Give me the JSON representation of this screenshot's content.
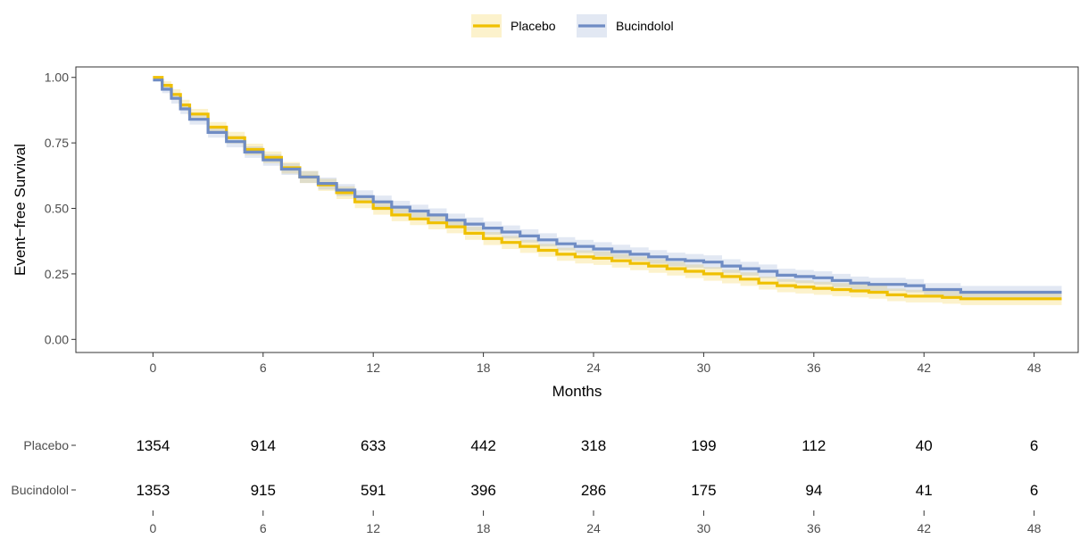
{
  "chart_data": {
    "type": "line",
    "title": "",
    "xlabel": "Months",
    "ylabel": "Event−free Survival",
    "xlim": [
      -4.2,
      50.4
    ],
    "ylim": [
      -0.05,
      1.04
    ],
    "xticks": [
      "0",
      "6",
      "12",
      "18",
      "24",
      "30",
      "36",
      "42",
      "48"
    ],
    "yticks": [
      "0.00",
      "0.25",
      "0.50",
      "0.75",
      "1.00"
    ],
    "legend_position": "top",
    "grid": false,
    "series": [
      {
        "name": "Placebo",
        "color": "#EFC000",
        "x": [
          0,
          0.5,
          1,
          1.5,
          2,
          3,
          4,
          5,
          6,
          7,
          8,
          9,
          10,
          11,
          12,
          13,
          14,
          15,
          16,
          17,
          18,
          19,
          20,
          21,
          22,
          23,
          24,
          25,
          26,
          27,
          28,
          29,
          30,
          31,
          32,
          33,
          34,
          35,
          36,
          37,
          38,
          39,
          40,
          41,
          42,
          43,
          44,
          45,
          46,
          47,
          48,
          49,
          49.5
        ],
        "y": [
          1.0,
          0.97,
          0.935,
          0.895,
          0.86,
          0.81,
          0.77,
          0.725,
          0.695,
          0.655,
          0.62,
          0.59,
          0.56,
          0.525,
          0.5,
          0.475,
          0.46,
          0.445,
          0.43,
          0.405,
          0.385,
          0.37,
          0.355,
          0.34,
          0.325,
          0.315,
          0.31,
          0.3,
          0.29,
          0.28,
          0.27,
          0.26,
          0.25,
          0.24,
          0.23,
          0.215,
          0.205,
          0.2,
          0.195,
          0.19,
          0.185,
          0.18,
          0.17,
          0.165,
          0.165,
          0.16,
          0.155,
          0.155,
          0.155,
          0.155,
          0.155,
          0.155,
          0.155
        ],
        "lower": [
          1.0,
          0.955,
          0.915,
          0.875,
          0.84,
          0.79,
          0.748,
          0.703,
          0.673,
          0.633,
          0.597,
          0.567,
          0.536,
          0.501,
          0.476,
          0.451,
          0.436,
          0.42,
          0.405,
          0.38,
          0.36,
          0.345,
          0.33,
          0.315,
          0.3,
          0.29,
          0.284,
          0.274,
          0.264,
          0.254,
          0.244,
          0.234,
          0.224,
          0.214,
          0.204,
          0.19,
          0.18,
          0.175,
          0.17,
          0.165,
          0.16,
          0.155,
          0.146,
          0.141,
          0.141,
          0.136,
          0.131,
          0.131,
          0.131,
          0.131,
          0.131,
          0.131,
          0.131
        ],
        "upper": [
          1.0,
          0.985,
          0.955,
          0.915,
          0.88,
          0.83,
          0.792,
          0.747,
          0.717,
          0.677,
          0.643,
          0.613,
          0.584,
          0.549,
          0.524,
          0.499,
          0.484,
          0.47,
          0.455,
          0.43,
          0.41,
          0.395,
          0.38,
          0.365,
          0.35,
          0.34,
          0.336,
          0.326,
          0.316,
          0.306,
          0.296,
          0.286,
          0.276,
          0.266,
          0.256,
          0.24,
          0.23,
          0.225,
          0.22,
          0.215,
          0.21,
          0.205,
          0.194,
          0.189,
          0.189,
          0.184,
          0.179,
          0.179,
          0.179,
          0.179,
          0.179,
          0.179,
          0.179
        ]
      },
      {
        "name": "Bucindolol",
        "color": "#6F8CC4",
        "x": [
          0,
          0.5,
          1,
          1.5,
          2,
          3,
          4,
          5,
          6,
          7,
          8,
          9,
          10,
          11,
          12,
          13,
          14,
          15,
          16,
          17,
          18,
          19,
          20,
          21,
          22,
          23,
          24,
          25,
          26,
          27,
          28,
          29,
          30,
          31,
          32,
          33,
          34,
          35,
          36,
          37,
          38,
          39,
          40,
          41,
          42,
          43,
          44,
          45,
          46,
          47,
          48,
          49,
          49.5
        ],
        "y": [
          0.99,
          0.955,
          0.92,
          0.88,
          0.84,
          0.79,
          0.755,
          0.715,
          0.685,
          0.65,
          0.62,
          0.595,
          0.57,
          0.545,
          0.525,
          0.505,
          0.49,
          0.475,
          0.455,
          0.44,
          0.425,
          0.41,
          0.395,
          0.38,
          0.365,
          0.355,
          0.345,
          0.335,
          0.325,
          0.315,
          0.305,
          0.3,
          0.295,
          0.28,
          0.27,
          0.26,
          0.245,
          0.24,
          0.235,
          0.225,
          0.215,
          0.21,
          0.21,
          0.205,
          0.19,
          0.19,
          0.18,
          0.18,
          0.18,
          0.18,
          0.18,
          0.18,
          0.18
        ],
        "lower": [
          0.99,
          0.94,
          0.9,
          0.86,
          0.82,
          0.77,
          0.733,
          0.693,
          0.663,
          0.628,
          0.597,
          0.572,
          0.547,
          0.521,
          0.501,
          0.481,
          0.466,
          0.45,
          0.43,
          0.415,
          0.4,
          0.385,
          0.37,
          0.355,
          0.34,
          0.33,
          0.319,
          0.309,
          0.299,
          0.289,
          0.279,
          0.274,
          0.269,
          0.254,
          0.244,
          0.234,
          0.22,
          0.215,
          0.21,
          0.2,
          0.19,
          0.185,
          0.185,
          0.18,
          0.165,
          0.165,
          0.156,
          0.156,
          0.156,
          0.156,
          0.156,
          0.156,
          0.156
        ],
        "upper": [
          0.99,
          0.97,
          0.94,
          0.9,
          0.86,
          0.81,
          0.777,
          0.737,
          0.707,
          0.672,
          0.643,
          0.618,
          0.593,
          0.569,
          0.549,
          0.529,
          0.514,
          0.5,
          0.48,
          0.465,
          0.45,
          0.435,
          0.42,
          0.405,
          0.39,
          0.38,
          0.371,
          0.361,
          0.351,
          0.341,
          0.331,
          0.326,
          0.321,
          0.306,
          0.296,
          0.286,
          0.27,
          0.265,
          0.26,
          0.25,
          0.24,
          0.235,
          0.235,
          0.23,
          0.215,
          0.215,
          0.204,
          0.204,
          0.204,
          0.204,
          0.204,
          0.204,
          0.204
        ]
      }
    ],
    "risk_table": {
      "times": [
        "0",
        "6",
        "12",
        "18",
        "24",
        "30",
        "36",
        "42",
        "48"
      ],
      "rows": [
        {
          "label": "Placebo",
          "values": [
            "1354",
            "914",
            "633",
            "442",
            "318",
            "199",
            "112",
            "40",
            "6"
          ]
        },
        {
          "label": "Bucindolol",
          "values": [
            "1353",
            "915",
            "591",
            "396",
            "286",
            "175",
            "94",
            "41",
            "6"
          ]
        }
      ]
    }
  }
}
